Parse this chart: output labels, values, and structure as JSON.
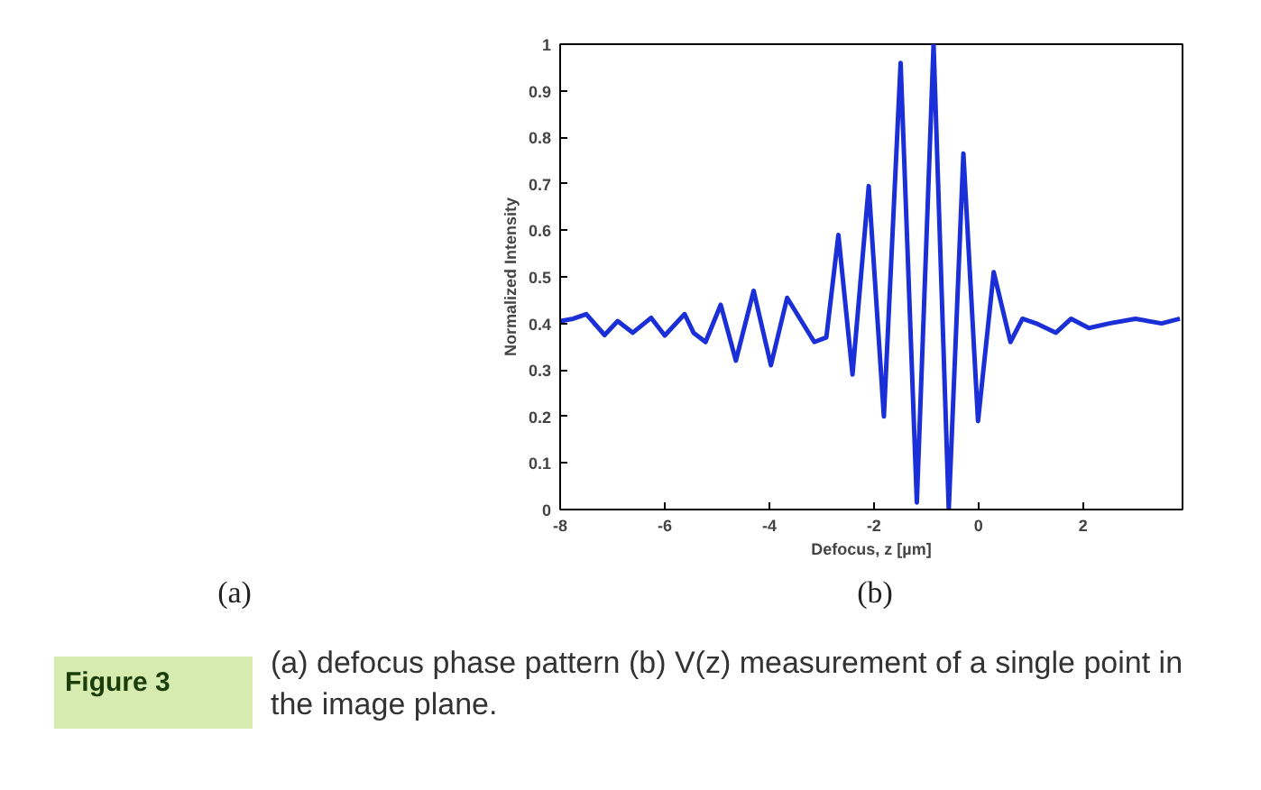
{
  "chart_data": {
    "type": "line",
    "xlabel": "Defocus, z [µm]",
    "ylabel": "Normalized Intensity",
    "color": "#1a2fd8",
    "x": [
      -8.0,
      -7.75,
      -7.5,
      -7.15,
      -6.9,
      -6.61,
      -6.26,
      -6.0,
      -5.62,
      -5.45,
      -5.22,
      -4.93,
      -4.64,
      -4.3,
      -3.97,
      -3.66,
      -3.14,
      -2.91,
      -2.68,
      -2.41,
      -2.1,
      -1.81,
      -1.49,
      -1.18,
      -0.86,
      -0.57,
      -0.29,
      -0.01,
      0.29,
      0.61,
      0.84,
      1.1,
      1.48,
      1.77,
      2.11,
      2.5,
      3.0,
      3.5,
      3.85
    ],
    "values": [
      0.405,
      0.41,
      0.42,
      0.375,
      0.405,
      0.38,
      0.412,
      0.374,
      0.42,
      0.38,
      0.36,
      0.44,
      0.32,
      0.47,
      0.31,
      0.455,
      0.36,
      0.37,
      0.59,
      0.29,
      0.695,
      0.2,
      0.96,
      0.015,
      1.0,
      0.0,
      0.765,
      0.19,
      0.51,
      0.36,
      0.41,
      0.4,
      0.38,
      0.41,
      0.39,
      0.4,
      0.41,
      0.4,
      0.41
    ],
    "xlim": [
      -8,
      3.9
    ],
    "ylim": [
      0,
      1
    ],
    "xticks": [
      -8,
      -6,
      -4,
      -2,
      0,
      2
    ],
    "yticks": [
      0,
      0.1,
      0.2,
      0.3,
      0.4,
      0.5,
      0.6,
      0.7,
      0.8,
      0.9,
      1
    ],
    "grid": false,
    "annotations": [
      "(a)",
      "(b)",
      "Figure 3",
      "(a) defocus phase pattern (b) V(z) measurement of a single point in the image plane."
    ]
  }
}
